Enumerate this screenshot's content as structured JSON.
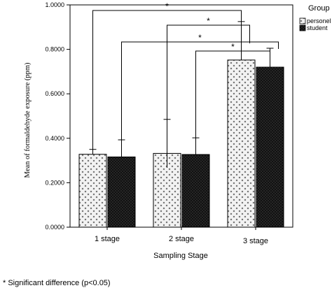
{
  "chart_data": {
    "type": "bar",
    "xlabel": "Sampling Stage",
    "ylabel": "Mean of formaldehyde exposure (ppm)",
    "ylim": [
      0,
      1.0
    ],
    "yticks": [
      "0.0000",
      "0.2000",
      "0.4000",
      "0.6000",
      "0.8000",
      "1.0000"
    ],
    "categories": [
      "1 stage",
      "2 stage",
      "3 stage"
    ],
    "series": [
      {
        "name": "personel",
        "values": [
          0.328,
          0.332,
          0.752
        ],
        "error_upper": [
          0.35,
          0.485,
          0.925
        ],
        "pattern": "crosshatch-light"
      },
      {
        "name": "student",
        "values": [
          0.316,
          0.327,
          0.72
        ],
        "error_upper": [
          0.393,
          0.402,
          0.805
        ],
        "pattern": "dots-dark"
      }
    ],
    "legend": {
      "title": "Group",
      "position": "top-right"
    },
    "significance_marker": "*",
    "significance_brackets": 4,
    "footnote": "* Significant difference (p<0.05)",
    "grid": false
  }
}
